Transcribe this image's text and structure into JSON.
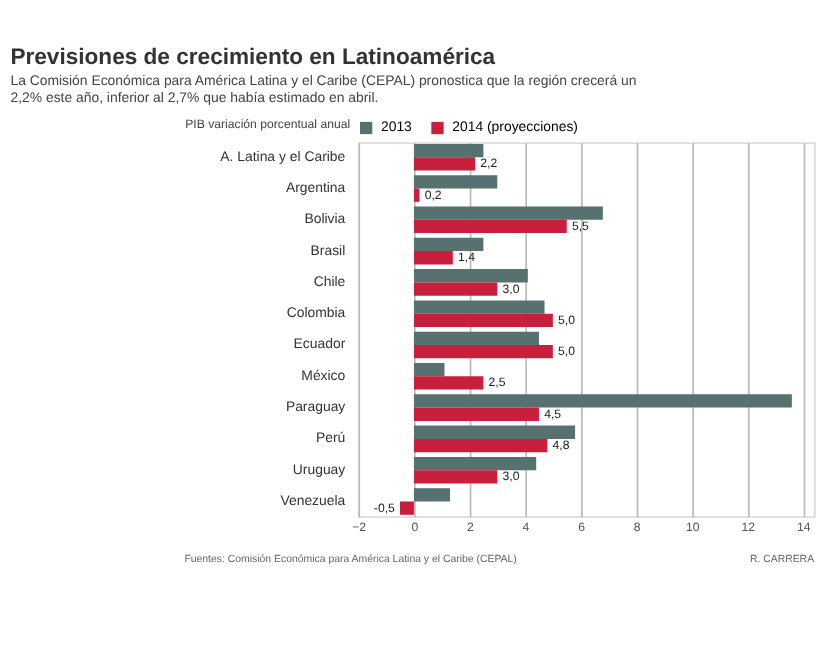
{
  "chart_data": {
    "type": "bar",
    "orientation": "horizontal",
    "title": "Previsiones de crecimiento en Latinoamérica",
    "subtitle": "La Comisión Económica para América Latina y el Caribe (CEPAL) pronostica que la región crecerá un 2,2% este año, inferior al 2,7% que había estimado en abril.",
    "ylabel": "PIB variación porcentual anual",
    "categories": [
      "A. Latina y el Caribe",
      "Argentina",
      "Bolivia",
      "Brasil",
      "Chile",
      "Colombia",
      "Ecuador",
      "México",
      "Paraguay",
      "Perú",
      "Uruguay",
      "Venezuela"
    ],
    "series": [
      {
        "name": "2013",
        "color": "#56716f",
        "values": [
          2.5,
          3.0,
          6.8,
          2.5,
          4.1,
          4.7,
          4.5,
          1.1,
          13.6,
          5.8,
          4.4,
          1.3
        ]
      },
      {
        "name": "2014 (proyecciones)",
        "color": "#c8203c",
        "values": [
          2.2,
          0.2,
          5.5,
          1.4,
          3.0,
          5.0,
          5.0,
          2.5,
          4.5,
          4.8,
          3.0,
          -0.5
        ],
        "value_labels": [
          "2,2",
          "0,2",
          "5,5",
          "1,4",
          "3,0",
          "5,0",
          "5,0",
          "2,5",
          "4,5",
          "4,8",
          "3,0",
          "-0,5"
        ]
      }
    ],
    "xlim": [
      -2,
      14.4
    ],
    "xticks": [
      -2,
      0,
      2,
      4,
      6,
      8,
      10,
      12,
      14
    ],
    "grid": "x",
    "legend": "top",
    "annotations": [
      "Fuentes: Comisión Económica para América Latina y el Caribe (CEPAL)",
      "R. CARRERA"
    ]
  }
}
